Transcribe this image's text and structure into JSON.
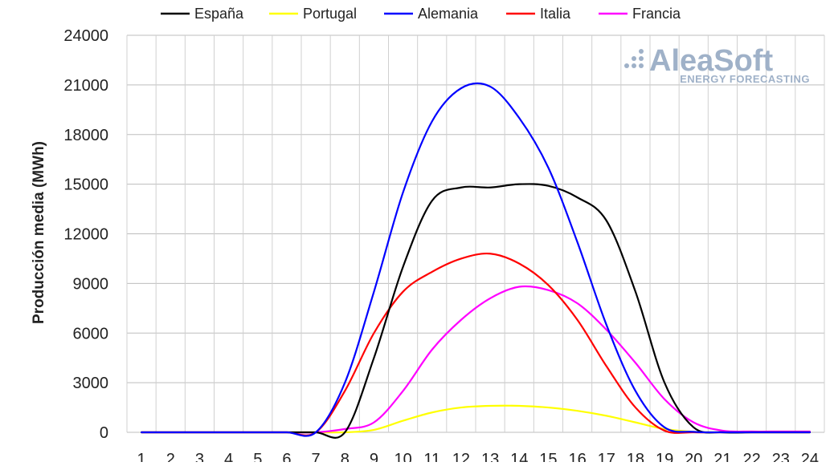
{
  "chart_data": {
    "type": "line",
    "title": "",
    "xlabel": "",
    "ylabel": "Producción media (MWh)",
    "x": [
      1,
      2,
      3,
      4,
      5,
      6,
      7,
      8,
      9,
      10,
      11,
      12,
      13,
      14,
      15,
      16,
      17,
      18,
      19,
      20,
      21,
      22,
      23,
      24
    ],
    "xlim": [
      1,
      24
    ],
    "ylim": [
      0,
      24000
    ],
    "yticks": [
      0,
      3000,
      6000,
      9000,
      12000,
      15000,
      18000,
      21000,
      24000
    ],
    "grid": true,
    "legend_position": "top",
    "series": [
      {
        "name": "España",
        "color": "#000000",
        "values": [
          0,
          0,
          0,
          0,
          0,
          0,
          0,
          0,
          4500,
          10000,
          14000,
          14800,
          14800,
          15000,
          14900,
          14200,
          12800,
          8500,
          3000,
          300,
          0,
          0,
          0,
          0
        ]
      },
      {
        "name": "Portugal",
        "color": "#ffff00",
        "values": [
          0,
          0,
          0,
          0,
          0,
          0,
          0,
          0,
          150,
          700,
          1200,
          1500,
          1600,
          1600,
          1500,
          1300,
          1000,
          600,
          200,
          30,
          0,
          0,
          0,
          0
        ]
      },
      {
        "name": "Alemania",
        "color": "#0000ff",
        "values": [
          0,
          0,
          0,
          0,
          0,
          0,
          0,
          3000,
          8500,
          14500,
          18800,
          20800,
          20900,
          19000,
          16000,
          11500,
          6500,
          2500,
          300,
          30,
          0,
          0,
          0,
          0
        ]
      },
      {
        "name": "Italia",
        "color": "#ff0000",
        "values": [
          0,
          0,
          0,
          0,
          0,
          0,
          0,
          2500,
          6000,
          8500,
          9700,
          10500,
          10800,
          10200,
          8900,
          6800,
          4000,
          1500,
          100,
          0,
          0,
          0,
          0,
          0
        ]
      },
      {
        "name": "Francia",
        "color": "#ff00ff",
        "values": [
          0,
          0,
          0,
          0,
          0,
          0,
          0,
          200,
          600,
          2500,
          5000,
          6800,
          8100,
          8800,
          8600,
          7800,
          6200,
          4200,
          2000,
          600,
          100,
          50,
          50,
          50
        ]
      }
    ]
  },
  "watermark": {
    "brand": "AleaSoft",
    "tagline": "ENERGY FORECASTING"
  }
}
